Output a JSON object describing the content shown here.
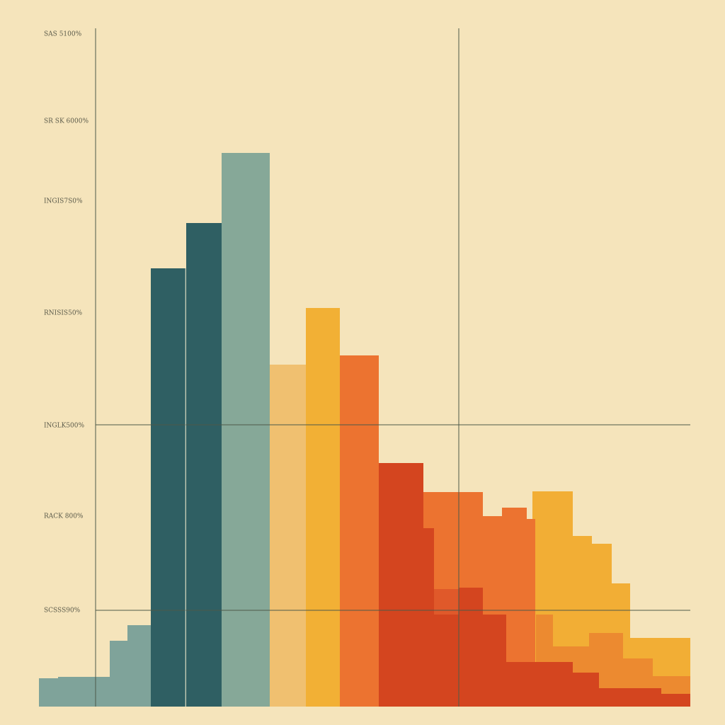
{
  "axis_labels": [
    "SAS 5100%",
    "SR SK 6000%",
    "INGIS7S0%",
    "RNISIS50%",
    "INGLK500%",
    "RACK 800%",
    "SCSSS90%"
  ]
}
